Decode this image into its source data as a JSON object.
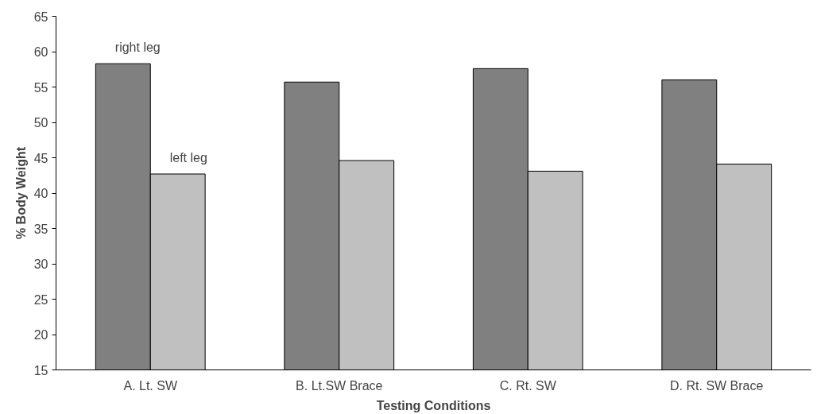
{
  "chart_data": {
    "type": "bar",
    "xlabel": "Testing Conditions",
    "ylabel": "% Body Weight",
    "categories": [
      "A. Lt. SW",
      "B. Lt.SW Brace",
      "C. Rt. SW",
      "D. Rt. SW Brace"
    ],
    "series": [
      {
        "name": "right leg",
        "color": "#808080",
        "values": [
          58.3,
          55.7,
          57.6,
          56.0
        ]
      },
      {
        "name": "left leg",
        "color": "#c0c0c0",
        "values": [
          42.7,
          44.6,
          43.1,
          44.1
        ]
      }
    ],
    "ylim": [
      15,
      65
    ],
    "yticks": [
      15,
      20,
      25,
      30,
      35,
      40,
      45,
      50,
      55,
      60,
      65
    ],
    "grid": false
  }
}
